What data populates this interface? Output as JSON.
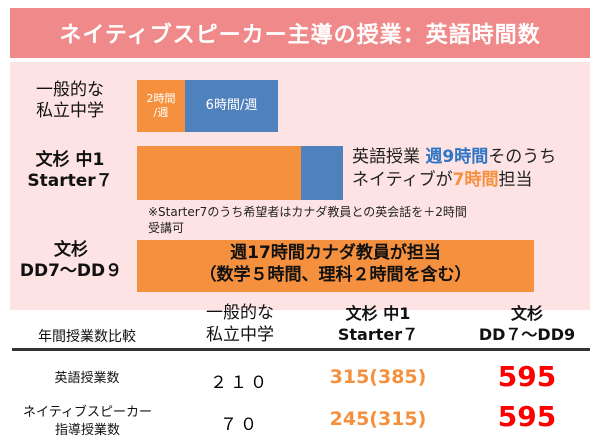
{
  "banner": {
    "title": "ネイティブスピーカー主導の授業：英語時間数"
  },
  "chart": {
    "row1": {
      "label": "一般的な\n私立中学",
      "seg1": "2時間\n/週",
      "seg2": "6時間/週"
    },
    "row2": {
      "label": "文杉 中1\nStarter７",
      "note_prefix": "英語授業 ",
      "note_hi1": "週9時間",
      "note_mid": "そのうち",
      "note_line2_prefix": "ネイティブが",
      "note_hi2": "7時間",
      "note_suffix": "担当"
    },
    "footnote": "※Starter7のうち希望者はカナダ教員との英会話を＋2時間\n受講可",
    "row3": {
      "label": "文杉\nDD7〜DD９",
      "text": "週17時間カナダ教員が担当\n（数学５時間、理科２時間を含む）"
    }
  },
  "table": {
    "caption": "年間授業数比較",
    "col1": "一般的な\n私立中学",
    "col2": "文杉 中1\nStarter７",
    "col3": "文杉\nDD７〜DD9",
    "row1": {
      "label": "英語授業数",
      "v1": "２１０",
      "v2": "315(385)",
      "v3": "595"
    },
    "row2": {
      "label": "ネイティブスピーカー\n指導授業数",
      "v1": "７０",
      "v2": "245(315)",
      "v3": "595"
    }
  },
  "colors": {
    "banner": "#f08a8a",
    "panel": "#fde3e3",
    "orange": "#f5913e",
    "blue": "#4f81bd",
    "red": "#ff0000",
    "highlightBlue": "#2e75c6",
    "highlightOrange": "#f5913e"
  }
}
